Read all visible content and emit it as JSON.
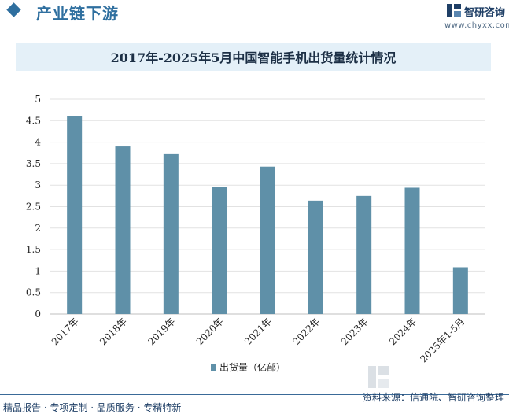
{
  "header": {
    "section_title": "产业链下游",
    "brand_name": "智研咨询",
    "brand_url": "www.chyxx.com"
  },
  "chart_data": {
    "type": "bar",
    "title": "2017年-2025年5月中国智能手机出货量统计情况",
    "categories": [
      "2017年",
      "2018年",
      "2019年",
      "2020年",
      "2021年",
      "2022年",
      "2023年",
      "2024年",
      "2025年1-5月"
    ],
    "series": [
      {
        "name": "出货量（亿部）",
        "values": [
          4.61,
          3.9,
          3.72,
          2.96,
          3.43,
          2.64,
          2.75,
          2.94,
          1.09
        ]
      }
    ],
    "ylim": [
      0,
      5
    ],
    "yticks": [
      "0",
      "0.5",
      "1",
      "1.5",
      "2",
      "2.5",
      "3",
      "3.5",
      "4",
      "4.5",
      "5"
    ],
    "grid": true,
    "legend_position": "bottom",
    "bar_color": "#5f90a8"
  },
  "footer": {
    "left": "精品报告 · 专项定制 · 品质服务 · 专精特新",
    "right": "资料来源：信通院、智研咨询整理"
  }
}
